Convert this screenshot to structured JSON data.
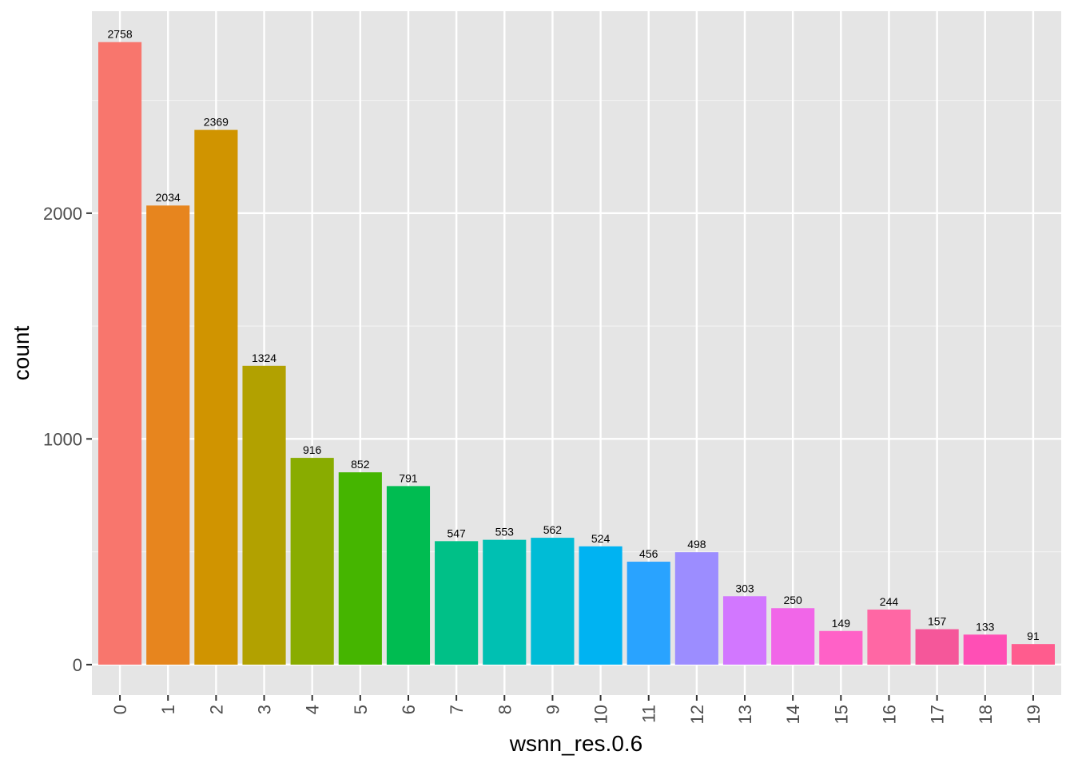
{
  "chart_data": {
    "type": "bar",
    "title": "",
    "xlabel": "wsnn_res.0.6",
    "ylabel": "count",
    "categories": [
      "0",
      "1",
      "2",
      "3",
      "4",
      "5",
      "6",
      "7",
      "8",
      "9",
      "10",
      "11",
      "12",
      "13",
      "14",
      "15",
      "16",
      "17",
      "18",
      "19"
    ],
    "values": [
      2758,
      2034,
      2369,
      1324,
      916,
      852,
      791,
      547,
      553,
      562,
      524,
      456,
      498,
      303,
      250,
      149,
      244,
      157,
      133,
      91
    ],
    "ylim": [
      -135,
      2895
    ],
    "y_ticks": [
      0,
      1000,
      2000
    ],
    "y_minor_ticks": [
      500,
      1500,
      2500
    ],
    "grid": true,
    "legend": "none",
    "colors": [
      "#F8766D",
      "#E7851E",
      "#D09400",
      "#B2A100",
      "#89AC00",
      "#45B500",
      "#00BC51",
      "#00C087",
      "#00C0B2",
      "#00BCD6",
      "#00B3F2",
      "#29A3FF",
      "#9C8DFF",
      "#D277FF",
      "#F166E8",
      "#FF61C7",
      "#FF67A4",
      "#F5579A",
      "#FF4FB5",
      "#FF5C8E"
    ],
    "panel_bg": "#E5E5E5"
  }
}
